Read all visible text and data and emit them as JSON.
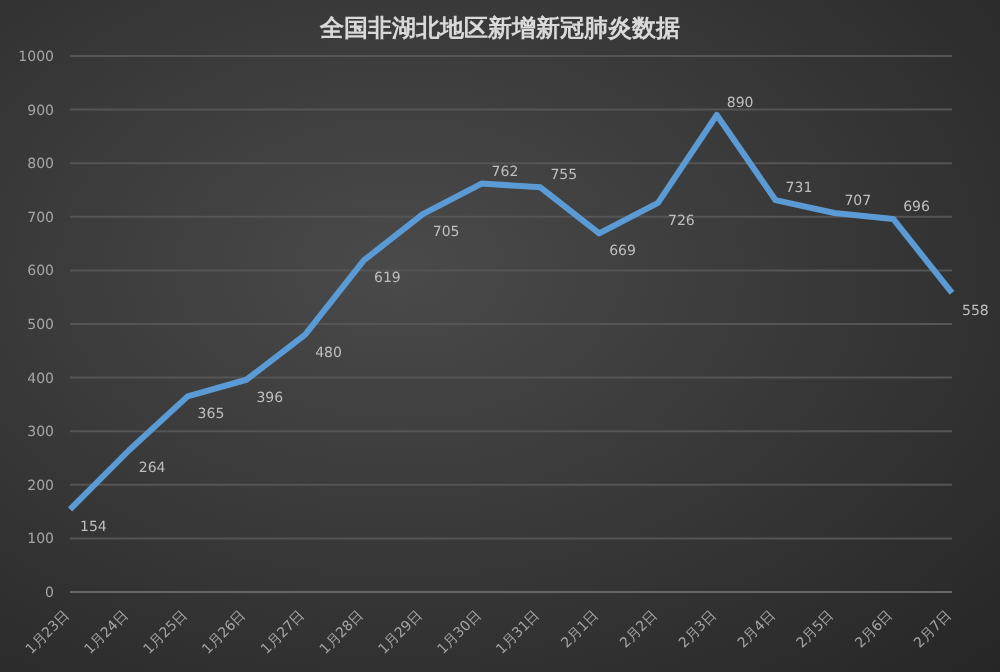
{
  "chart_data": {
    "type": "line",
    "title": "全国非湖北地区新增新冠肺炎数据",
    "categories": [
      "1月23日",
      "1月24日",
      "1月25日",
      "1月26日",
      "1月27日",
      "1月28日",
      "1月29日",
      "1月30日",
      "1月31日",
      "2月1日",
      "2月2日",
      "2月3日",
      "2月4日",
      "2月5日",
      "2月6日",
      "2月7日"
    ],
    "series": [
      {
        "color": "#5b9bd5",
        "values": [
          154,
          264,
          365,
          396,
          480,
          619,
          705,
          762,
          755,
          669,
          726,
          890,
          731,
          707,
          696,
          558
        ]
      }
    ],
    "ylim": [
      0,
      1000
    ],
    "yticks": [
      0,
      100,
      200,
      300,
      400,
      500,
      600,
      700,
      800,
      900,
      1000
    ],
    "grid": "y",
    "data_labels": true,
    "marker": "none",
    "line_style": "solid"
  }
}
